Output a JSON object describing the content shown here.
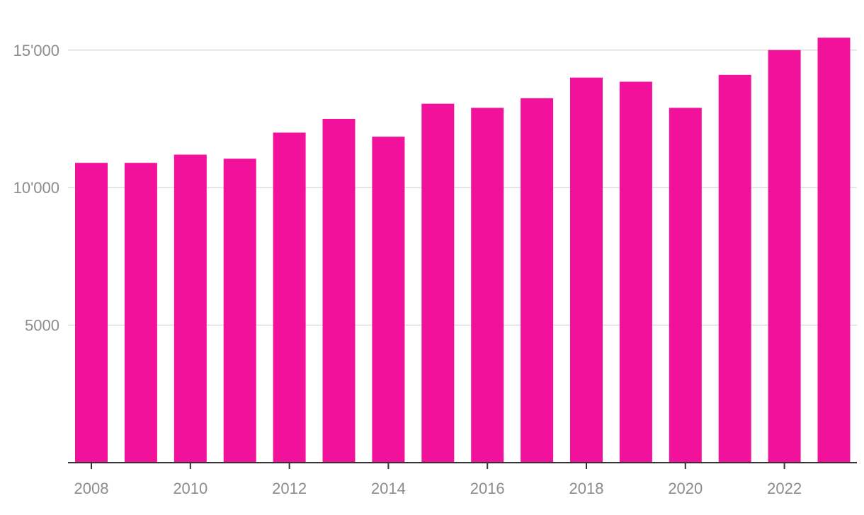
{
  "chart_data": {
    "type": "bar",
    "title": "",
    "xlabel": "",
    "ylabel": "",
    "categories": [
      "2008",
      "2009",
      "2010",
      "2011",
      "2012",
      "2013",
      "2014",
      "2015",
      "2016",
      "2017",
      "2018",
      "2019",
      "2020",
      "2021",
      "2022",
      "2023"
    ],
    "values": [
      10900,
      10900,
      11200,
      11050,
      12000,
      12500,
      11850,
      13050,
      12900,
      13250,
      14000,
      13850,
      12900,
      14100,
      15000,
      15450
    ],
    "x_tick_labels": [
      "2008",
      "2010",
      "2012",
      "2014",
      "2016",
      "2018",
      "2020",
      "2022"
    ],
    "y_ticks": [
      {
        "value": 5000,
        "label": "5000"
      },
      {
        "value": 10000,
        "label": "10'000"
      },
      {
        "value": 15000,
        "label": "15'000"
      }
    ],
    "ylim": [
      0,
      15700
    ],
    "grid": true,
    "legend": "none",
    "colors": {
      "bar": "#f2119a",
      "grid": "#dedede",
      "axis": "#333333",
      "label": "#8c8c8c"
    }
  }
}
